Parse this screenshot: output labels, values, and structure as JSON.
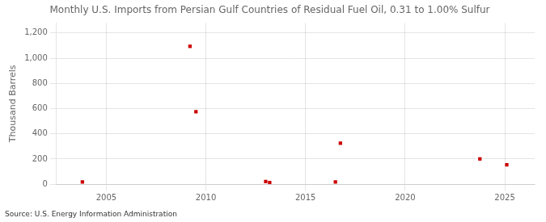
{
  "chart_data": {
    "type": "scatter",
    "title": "Monthly U.S. Imports from Persian Gulf Countries of Residual Fuel Oil, 0.31 to 1.00% Sulfur",
    "ylabel": "Thousand Barrels",
    "annotation": "Source: U.S. Energy Information Administration",
    "x": [
      2003.8,
      2009.2,
      2009.5,
      2013.0,
      2013.2,
      2016.5,
      2016.75,
      2023.75,
      2025.1
    ],
    "values": [
      18,
      1095,
      575,
      22,
      14,
      18,
      325,
      200,
      155
    ],
    "color": "#cc0000",
    "marker": "square",
    "xlim": [
      2002.5,
      2026.5
    ],
    "xticks": [
      2005,
      2010,
      2015,
      2020,
      2025
    ],
    "ylim": [
      0,
      1280
    ],
    "yticks": [
      0,
      200,
      400,
      600,
      800,
      {
        "value": 1000,
        "label": "1,000"
      },
      {
        "value": 1200,
        "label": "1,200"
      }
    ],
    "grid": true
  }
}
